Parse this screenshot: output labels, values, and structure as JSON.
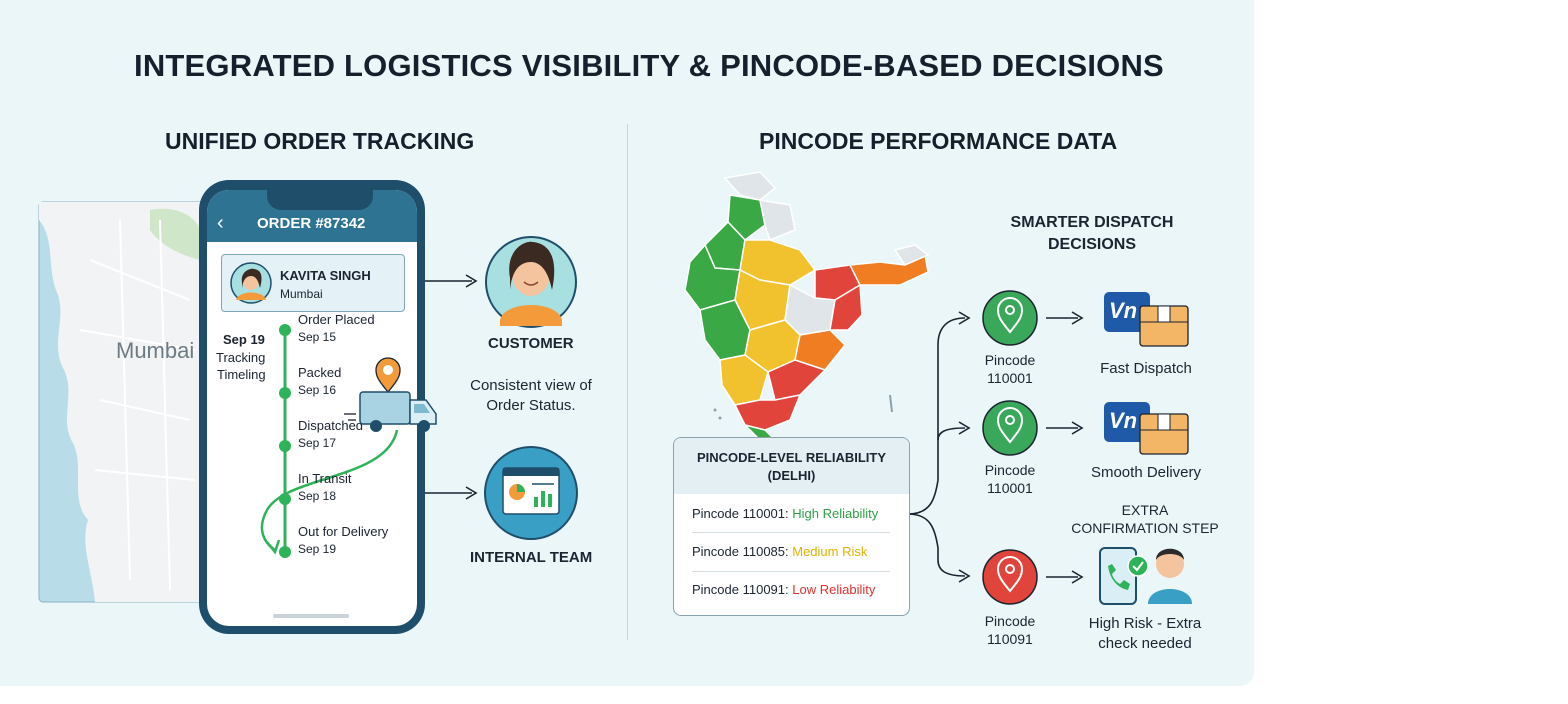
{
  "title": "INTEGRATED LOGISTICS VISIBILITY & PINCODE-BASED DECISIONS",
  "left_section": {
    "title": "UNIFIED ORDER TRACKING",
    "map_label": "Mumbai",
    "side_label": {
      "date": "Sep 19",
      "line1": "Tracking",
      "line2": "Timeling"
    },
    "phone": {
      "order_title": "ORDER #87342",
      "customer_name": "KAVITA SINGH",
      "customer_city": "Mumbai",
      "timeline": [
        {
          "label": "Order Placed",
          "date": "Sep 15"
        },
        {
          "label": "Packed",
          "date": "Sep 16"
        },
        {
          "label": "Dispatched",
          "date": "Sep 17"
        },
        {
          "label": "In Transit",
          "date": "Sep 18"
        },
        {
          "label": "Out for Delivery",
          "date": "Sep 19"
        }
      ]
    },
    "customer": {
      "label": "CUSTOMER",
      "caption_line1": "Consistent view of",
      "caption_line2": "Order Status."
    },
    "internal_team": {
      "label": "INTERNAL TEAM"
    }
  },
  "right_section": {
    "title": "PINCODE PERFORMANCE DATA",
    "decisions_title_line1": "SMARTER DISPATCH",
    "decisions_title_line2": "DECISIONS",
    "reliability_card": {
      "title_line1": "PINCODE-LEVEL RELIABILITY",
      "title_line2": "(DELHI)",
      "rows": [
        {
          "prefix": "Pincode 110001:",
          "status": "High Reliability",
          "color": "#2f9e44"
        },
        {
          "prefix": "Pincode 110085:",
          "status": "Medium Risk",
          "color": "#e0b000"
        },
        {
          "prefix": "Pincode 110091:",
          "status": "Low Reliability",
          "color": "#e03131"
        }
      ]
    },
    "decisions": [
      {
        "pin_label": "Pincode",
        "pin_code": "110001",
        "outcome_line1": "Fast Dispatch",
        "outcome_line2": "",
        "pin_color": "#3aa85a"
      },
      {
        "pin_label": "Pincode",
        "pin_code": "110001",
        "outcome_line1": "Smooth Delivery",
        "outcome_line2": "",
        "pin_color": "#3aa85a"
      },
      {
        "pin_label": "Pincode",
        "pin_code": "110091",
        "outcome_line1": "High Risk - Extra",
        "outcome_line2": "check needed",
        "pin_color": "#e0443a"
      }
    ],
    "extra_step_line1": "EXTRA",
    "extra_step_line2": "CONFIRMATION STEP",
    "box_logo": "Vn"
  },
  "colors": {
    "panel_bg": "#eaf6f8",
    "phone_frame": "#1f4e6b",
    "phone_header": "#2f7393",
    "timeline_green": "#2fb35a",
    "map_green": "#3aa845",
    "map_yellow": "#f2c12e",
    "map_orange": "#f07d22",
    "map_red": "#e0443a",
    "map_grey": "#dfe5e8"
  },
  "icons": [
    "back-chevron-icon",
    "avatar-icon",
    "location-pin-icon",
    "delivery-truck-icon",
    "customer-avatar-icon",
    "dashboard-icon",
    "box-icon",
    "phone-check-icon",
    "agent-icon"
  ]
}
